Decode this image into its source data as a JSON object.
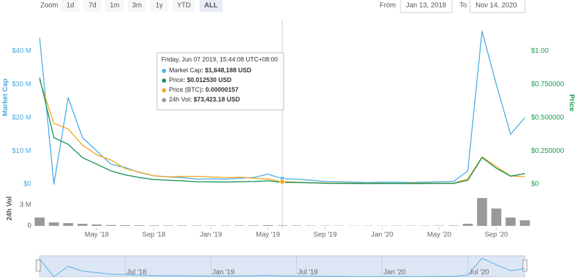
{
  "controls": {
    "zoom_label": "Zoom",
    "buttons": [
      "1d",
      "7d",
      "1m",
      "3m",
      "1y",
      "YTD",
      "ALL"
    ],
    "active": 6,
    "from_label": "From",
    "from": "Jan 13, 2018",
    "to_label": "To",
    "to": "Nov 14, 2020"
  },
  "chart_data": [
    {
      "type": "line",
      "ylabel": "Market Cap",
      "y2label": "Price",
      "x": [
        "2018-01",
        "2018-02",
        "2018-03",
        "2018-04",
        "2018-05",
        "2018-06",
        "2018-07",
        "2018-08",
        "2018-09",
        "2018-10",
        "2018-11",
        "2018-12",
        "2019-01",
        "2019-02",
        "2019-03",
        "2019-04",
        "2019-05",
        "2019-06",
        "2019-07",
        "2019-08",
        "2019-09",
        "2019-10",
        "2019-11",
        "2019-12",
        "2020-01",
        "2020-02",
        "2020-03",
        "2020-04",
        "2020-05",
        "2020-06",
        "2020-07",
        "2020-08",
        "2020-09",
        "2020-10",
        "2020-11"
      ],
      "xlim": [
        "2018-01",
        "2020-11"
      ],
      "ylim": [
        0,
        47
      ],
      "yticks": [
        {
          "value": 0,
          "label": "$0"
        },
        {
          "value": 10,
          "label": "$10 M"
        },
        {
          "value": 20,
          "label": "$20 M"
        },
        {
          "value": 30,
          "label": "$30 M"
        },
        {
          "value": 40,
          "label": "$40 M"
        }
      ],
      "y2lim": [
        0,
        1.175
      ],
      "y2ticks": [
        {
          "value": 0,
          "label": "$0"
        },
        {
          "value": 0.25,
          "label": "$0.250000"
        },
        {
          "value": 0.5,
          "label": "$0.500000"
        },
        {
          "value": 0.75,
          "label": "$0.750000"
        },
        {
          "value": 1,
          "label": "$1.00"
        }
      ],
      "y3lim": [
        0,
        0.0001
      ],
      "series": [
        {
          "name": "Market Cap",
          "color": "#4fb0e6",
          "values": [
            44,
            0,
            26,
            14,
            10,
            6,
            5,
            3.5,
            2.5,
            2.2,
            2,
            1.5,
            1.6,
            1.5,
            1.8,
            2,
            3,
            1.648188,
            1.5,
            1.2,
            0.8,
            0.7,
            0.6,
            0.5,
            0.6,
            0.6,
            0.5,
            0.6,
            0.7,
            0.8,
            4,
            46,
            30,
            15,
            20
          ]
        },
        {
          "name": "Price",
          "color": "#17955a",
          "axis": "y2",
          "values": [
            0.8,
            0.35,
            0.3,
            0.2,
            0.15,
            0.1,
            0.07,
            0.05,
            0.035,
            0.03,
            0.025,
            0.018,
            0.017,
            0.016,
            0.018,
            0.02,
            0.025,
            0.01253,
            0.013,
            0.01,
            0.007,
            0.006,
            0.005,
            0.004,
            0.005,
            0.005,
            0.004,
            0.005,
            0.006,
            0.006,
            0.03,
            0.2,
            0.12,
            0.06,
            0.08
          ]
        },
        {
          "name": "Price (BTC)",
          "color": "#f5a623",
          "axis": "y3",
          "values": [
            6.67e-05,
            3.89e-05,
            3.53e-05,
            2.5e-05,
            1.88e-05,
            1.54e-05,
            1e-05,
            7.7e-06,
            5.4e-06,
            4.7e-06,
            5e-06,
            5e-06,
            4.7e-06,
            4.2e-06,
            4.5e-06,
            3.8e-06,
            3.3e-06,
            1.57e-06,
            1.3e-06,
            1e-06,
            8e-07,
            7e-07,
            6e-07,
            5e-07,
            6e-07,
            5e-07,
            6e-07,
            7e-07,
            6e-07,
            6e-07,
            3.3e-06,
            1.74e-05,
            1.13e-05,
            5.2e-06,
            4.8e-06
          ]
        }
      ],
      "tooltip": {
        "index": 17,
        "title": "Friday, Jun 07 2019, 15:44:08 UTC+08:00",
        "values": [
          ": $1,648,188 USD",
          ": $0.012530 USD",
          ": 0.00000157",
          ": $73,423.18 USD"
        ]
      },
      "navigator": {
        "xticks": [
          {
            "value": "2018-07",
            "label": "Jul '18"
          },
          {
            "value": "2019-01",
            "label": "Jan '19"
          },
          {
            "value": "2019-07",
            "label": "Jul '19"
          },
          {
            "value": "2020-01",
            "label": "Jan '20"
          },
          {
            "value": "2020-07",
            "label": "Jul '20"
          }
        ]
      }
    },
    {
      "type": "bar",
      "ylabel": "24h Vol",
      "x": [
        "2018-01",
        "2018-02",
        "2018-03",
        "2018-04",
        "2018-05",
        "2018-06",
        "2018-07",
        "2018-08",
        "2018-09",
        "2018-10",
        "2018-11",
        "2018-12",
        "2019-01",
        "2019-02",
        "2019-03",
        "2019-04",
        "2019-05",
        "2019-06",
        "2019-07",
        "2019-08",
        "2019-09",
        "2019-10",
        "2019-11",
        "2019-12",
        "2020-01",
        "2020-02",
        "2020-03",
        "2020-04",
        "2020-05",
        "2020-06",
        "2020-07",
        "2020-08",
        "2020-09",
        "2020-10",
        "2020-11"
      ],
      "xlim": [
        "2018-01",
        "2020-11"
      ],
      "xticks": [
        {
          "value": "2018-05",
          "label": "May '18"
        },
        {
          "value": "2018-09",
          "label": "Sep '18"
        },
        {
          "value": "2019-01",
          "label": "Jan '19"
        },
        {
          "value": "2019-05",
          "label": "May '19"
        },
        {
          "value": "2019-09",
          "label": "Sep '19"
        },
        {
          "value": "2020-01",
          "label": "Jan '20"
        },
        {
          "value": "2020-05",
          "label": "May '20"
        },
        {
          "value": "2020-09",
          "label": "Sep '20"
        }
      ],
      "ylim": [
        0,
        4.3
      ],
      "yticks": [
        0,
        {
          "value": 3,
          "label": "3 M"
        }
      ],
      "series": [
        {
          "name": "24h Vol",
          "color": "#999999",
          "values": [
            1.2,
            0.5,
            0.4,
            0.3,
            0.2,
            0.12,
            0.1,
            0.08,
            0.07,
            0.06,
            0.06,
            0.05,
            0.05,
            0.05,
            0.06,
            0.07,
            0.1,
            0.073423,
            0.06,
            0.05,
            0.04,
            0.04,
            0.03,
            0.03,
            0.03,
            0.04,
            0.04,
            0.04,
            0.05,
            0.06,
            0.3,
            4,
            2.5,
            1.2,
            0.8
          ]
        }
      ]
    }
  ]
}
